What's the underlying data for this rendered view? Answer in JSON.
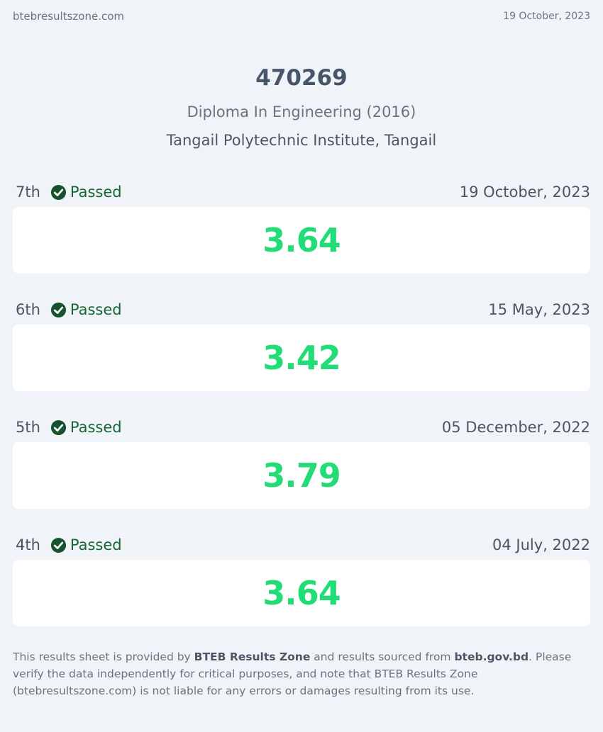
{
  "topbar": {
    "site": "btebresultszone.com",
    "date": "19 October, 2023"
  },
  "student": {
    "roll": "470269",
    "program": "Diploma In Engineering (2016)",
    "institute": "Tangail Polytechnic Institute, Tangail"
  },
  "results": [
    {
      "semester": "7th",
      "status": "Passed",
      "date": "19 October, 2023",
      "gpa": "3.64"
    },
    {
      "semester": "6th",
      "status": "Passed",
      "date": "15 May, 2023",
      "gpa": "3.42"
    },
    {
      "semester": "5th",
      "status": "Passed",
      "date": "05 December, 2022",
      "gpa": "3.79"
    },
    {
      "semester": "4th",
      "status": "Passed",
      "date": "04 July, 2022",
      "gpa": "3.64"
    }
  ],
  "footer": {
    "text1": "This results sheet is provided by ",
    "provider": "BTEB Results Zone",
    "text2": " and results sourced from ",
    "source": "bteb.gov.bd",
    "text3": ". Please verify the data independently for critical purposes, and note that BTEB Results Zone (btebresultszone.com) is not liable for any errors or damages resulting from its use."
  },
  "icons": {
    "status": "check-circle-icon"
  },
  "colors": {
    "background": "#f0f4f9",
    "gpa": "#22dd77",
    "passed": "#166534",
    "card": "#ffffff"
  }
}
